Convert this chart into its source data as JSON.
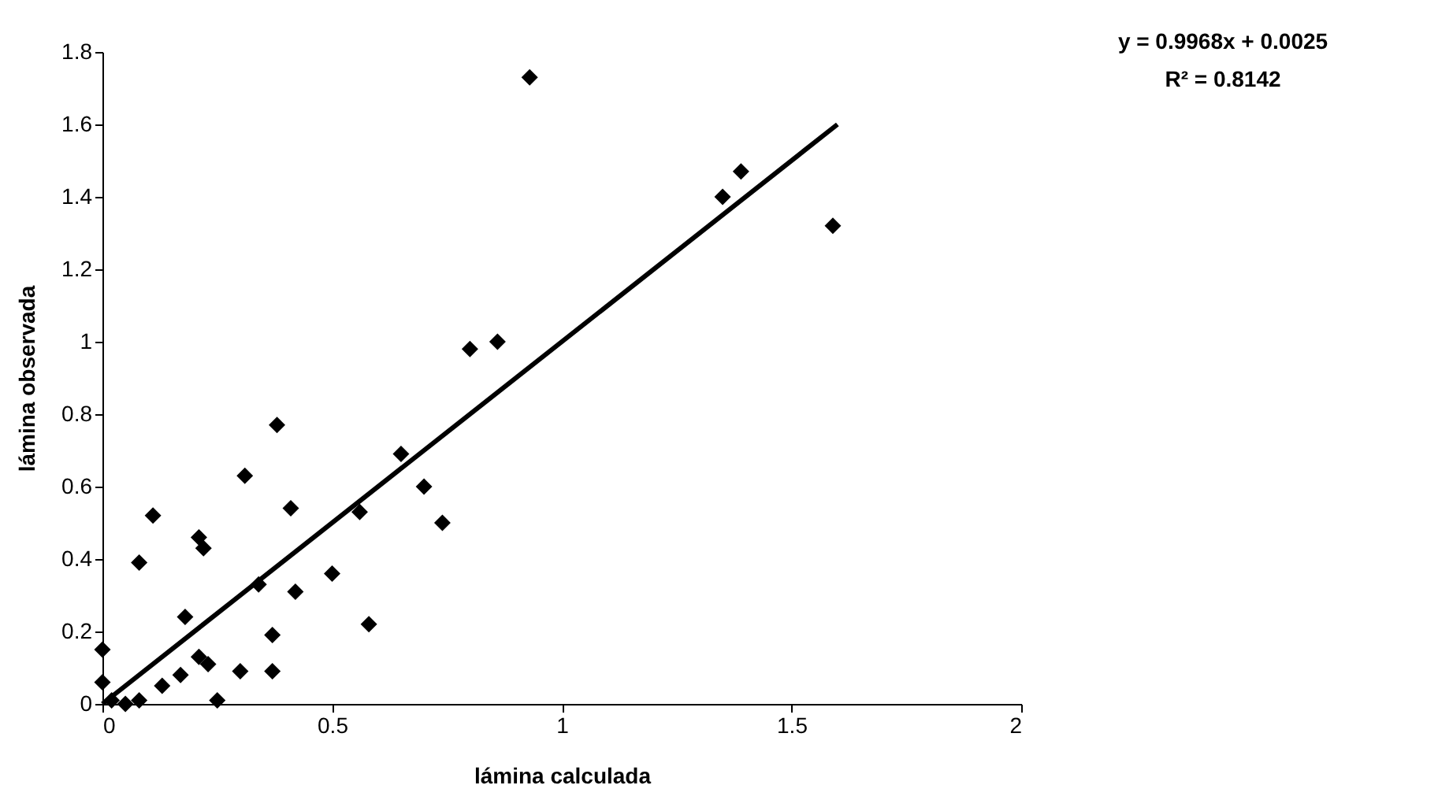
{
  "chart_data": {
    "type": "scatter",
    "xlabel": "lámina calculada",
    "ylabel": "lámina observada",
    "annotations": [
      "y = 0.9968x + 0.0025",
      "R² = 0.8142"
    ],
    "xlim": [
      0,
      2
    ],
    "xticks": [
      0,
      0.5,
      1,
      1.5,
      2
    ],
    "ylim": [
      0,
      1.8
    ],
    "yticks": [
      0,
      0.2,
      0.4,
      0.6,
      0.8,
      1,
      1.2,
      1.4,
      1.6,
      1.8
    ],
    "grid": false,
    "marker": "diamond",
    "series": [
      {
        "color": "#000000",
        "x": [
          0,
          0,
          0.02,
          0.05,
          0.08,
          0.08,
          0.11,
          0.13,
          0.17,
          0.18,
          0.21,
          0.21,
          0.22,
          0.23,
          0.25,
          0.3,
          0.31,
          0.34,
          0.37,
          0.37,
          0.38,
          0.41,
          0.42,
          0.5,
          0.56,
          0.58,
          0.65,
          0.7,
          0.74,
          0.8,
          0.86,
          0.93,
          1.35,
          1.39,
          1.59
        ],
        "values": [
          0.15,
          0.06,
          0.01,
          0.0,
          0.01,
          0.39,
          0.52,
          0.05,
          0.08,
          0.24,
          0.13,
          0.46,
          0.43,
          0.11,
          0.01,
          0.09,
          0.63,
          0.33,
          0.09,
          0.19,
          0.77,
          0.54,
          0.31,
          0.36,
          0.53,
          0.22,
          0.69,
          0.6,
          0.5,
          0.98,
          1.0,
          1.73,
          1.4,
          1.47,
          1.32
        ]
      },
      {
        "type": "line",
        "color": "#000000",
        "marker": "none",
        "line_style": "solid",
        "x": [
          0,
          1.6
        ],
        "values": [
          0,
          1.6
        ]
      }
    ]
  }
}
